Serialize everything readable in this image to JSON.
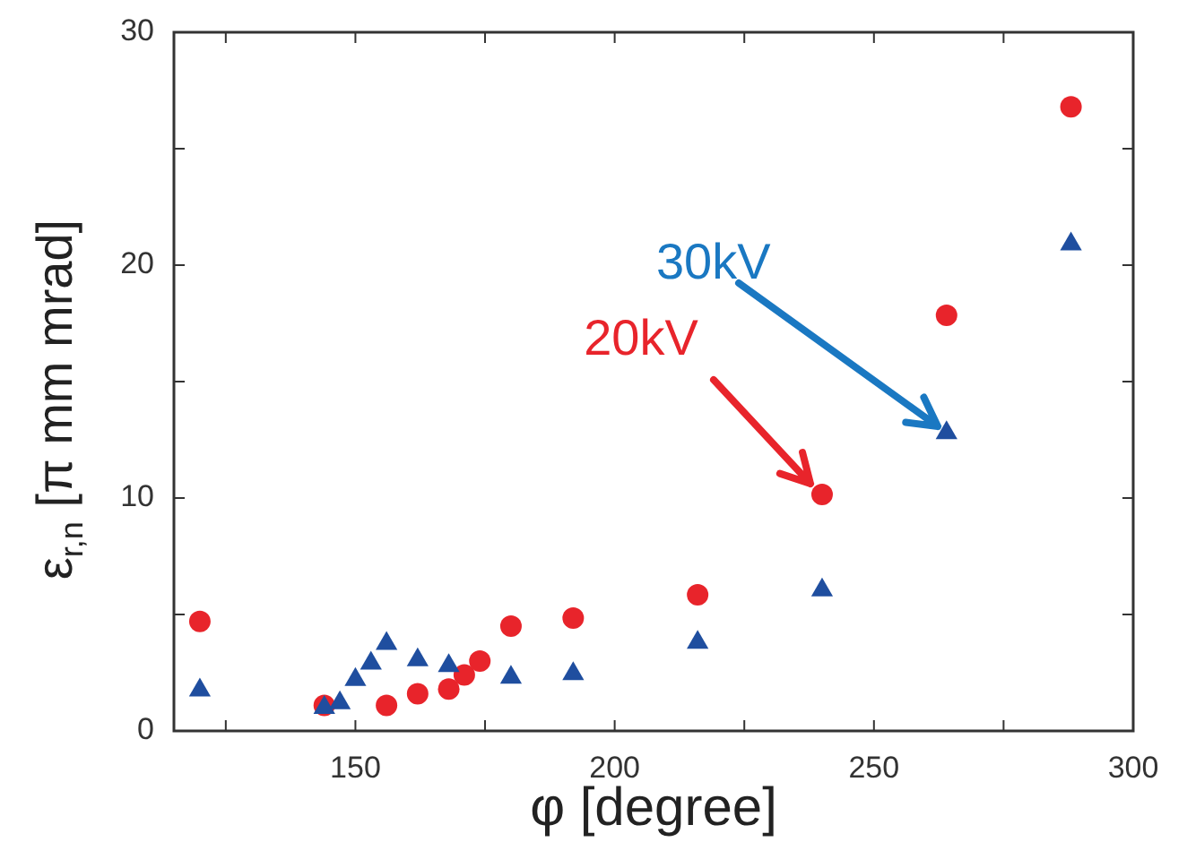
{
  "chart_data": {
    "type": "scatter",
    "xlabel": "φ [degree]",
    "ylabel": "ε$_{r,n}$ [π mm mrad]",
    "xlim": [
      115,
      300
    ],
    "xticks": [
      {
        "value": 125,
        "label": null
      },
      150,
      {
        "value": 175,
        "label": null
      },
      200,
      {
        "value": 225,
        "label": null
      },
      250,
      {
        "value": 275,
        "label": null
      },
      300
    ],
    "ylim": [
      0,
      30
    ],
    "yticks": [
      0,
      {
        "value": 5,
        "label": null
      },
      10,
      {
        "value": 15,
        "label": null
      },
      20,
      {
        "value": 25,
        "label": null
      },
      30
    ],
    "grid": false,
    "legend": false,
    "series": [
      {
        "color": "#e8242b",
        "marker": "circle",
        "x": [
          120,
          144,
          156,
          162,
          168,
          171,
          174,
          180,
          192,
          216,
          240,
          264,
          288
        ],
        "values": [
          4.7,
          1.1,
          1.1,
          1.6,
          1.8,
          2.4,
          3.0,
          4.5,
          4.85,
          5.85,
          10.15,
          17.85,
          26.8
        ]
      },
      {
        "color": "#1f4e9f",
        "marker": "triangle",
        "x": [
          120,
          144,
          147,
          150,
          153,
          156,
          162,
          168,
          180,
          192,
          216,
          240,
          264,
          288
        ],
        "values": [
          1.75,
          1.0,
          1.2,
          2.2,
          2.9,
          3.75,
          3.05,
          2.8,
          2.3,
          2.45,
          3.8,
          6.05,
          12.8,
          20.9
        ]
      }
    ],
    "annotations": [
      {
        "text": "30kV",
        "x": 264,
        "y": 12.8
      },
      {
        "text": "20kV",
        "x": 240,
        "y": 10.15
      }
    ]
  }
}
